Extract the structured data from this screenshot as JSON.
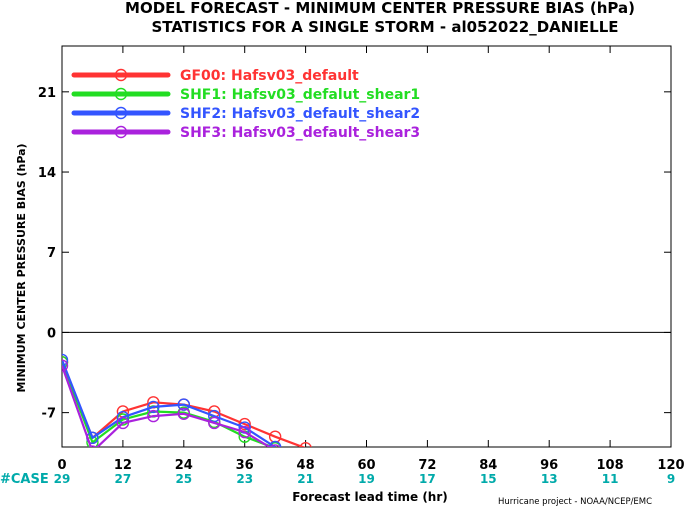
{
  "chart_data": {
    "type": "line",
    "title_lines": [
      "MODEL FORECAST - MINIMUM CENTER PRESSURE BIAS (hPa)",
      "STATISTICS FOR A SINGLE STORM - al052022_DANIELLE"
    ],
    "xlabel": "Forecast lead time (hr)",
    "ylabel": "MINIMUM CENTER PRESSURE BIAS (hPa)",
    "xlim": [
      0,
      120
    ],
    "ylim": [
      -10,
      25
    ],
    "x_ticks": [
      0,
      12,
      24,
      36,
      48,
      60,
      72,
      84,
      96,
      108,
      120
    ],
    "y_ticks": [
      -7,
      0,
      7,
      14,
      21
    ],
    "zero_line": true,
    "grid": false,
    "legend_position": "top-left",
    "case_label": "#CASE",
    "cases": [
      29,
      27,
      25,
      23,
      21,
      19,
      17,
      15,
      13,
      11,
      9
    ],
    "credit": "Hurricane project - NOAA/NCEP/EMC",
    "series": [
      {
        "name": "GF00: Hafsv03_default",
        "color": "#ff3333",
        "x": [
          0,
          6,
          12,
          18,
          24,
          30,
          36,
          42,
          48
        ],
        "y": [
          -2.6,
          -9.2,
          -6.9,
          -6.1,
          -6.3,
          -6.9,
          -8.0,
          -9.1,
          -10.1
        ]
      },
      {
        "name": "SHF1: Hafsv03_defalut_shear1",
        "color": "#22dd22",
        "x": [
          0,
          6,
          12,
          18,
          24,
          30,
          36,
          42
        ],
        "y": [
          -2.6,
          -9.6,
          -7.6,
          -6.9,
          -7.0,
          -7.8,
          -9.1,
          -10.1
        ]
      },
      {
        "name": "SHF2: Hafsv03_default_shear2",
        "color": "#3355ff",
        "x": [
          0,
          6,
          12,
          18,
          24,
          30,
          36,
          42
        ],
        "y": [
          -2.4,
          -9.2,
          -7.4,
          -6.5,
          -6.3,
          -7.3,
          -8.3,
          -10.0
        ]
      },
      {
        "name": "SHF3: Hafsv03_default_shear3",
        "color": "#aa22dd",
        "x": [
          0,
          6,
          12,
          18,
          24,
          30,
          36,
          42
        ],
        "y": [
          -2.9,
          -10.4,
          -7.9,
          -7.3,
          -7.1,
          -7.9,
          -8.7,
          -10.3
        ]
      }
    ]
  }
}
